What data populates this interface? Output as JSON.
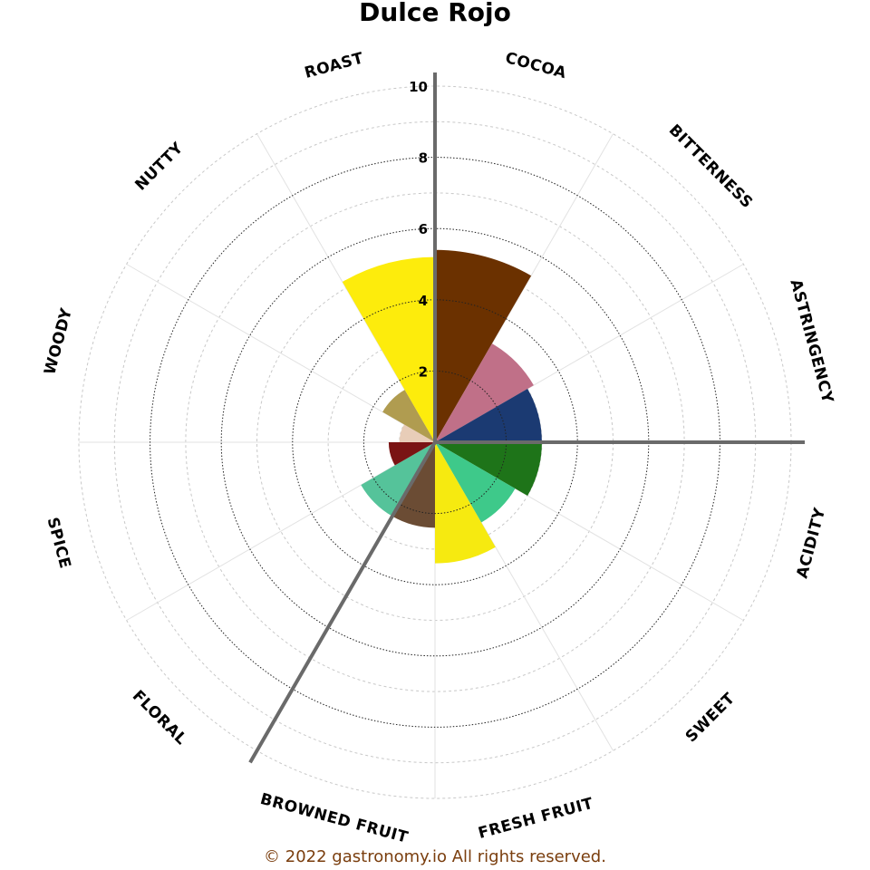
{
  "chart_data": {
    "type": "polar-bar",
    "title": "Dulce Rojo",
    "radial_range": [
      0,
      10
    ],
    "radial_ticks": [
      2,
      4,
      6,
      8,
      10
    ],
    "grid": true,
    "categories": [
      "COCOA",
      "BITTERNESS",
      "ASTRINGENCY",
      "ACIDITY",
      "SWEET",
      "FRESH FRUIT",
      "BROWNED FRUIT",
      "FLORAL",
      "SPICE",
      "WOODY",
      "NUTTY",
      "ROAST"
    ],
    "values": [
      5.4,
      3.2,
      3.0,
      3.0,
      2.6,
      3.4,
      2.4,
      2.4,
      1.3,
      1.0,
      1.7,
      5.2
    ],
    "colors": [
      "#6b3100",
      "#c07088",
      "#1b3a72",
      "#1e7419",
      "#3ec98a",
      "#f6ea10",
      "#6b4c34",
      "#55c39a",
      "#7a1414",
      "#e8cdb8",
      "#b09c50",
      "#fdec0c"
    ],
    "highlight_angles_deg": [
      0,
      90,
      210
    ]
  },
  "footer": "© 2022 gastronomy.io All rights reserved."
}
